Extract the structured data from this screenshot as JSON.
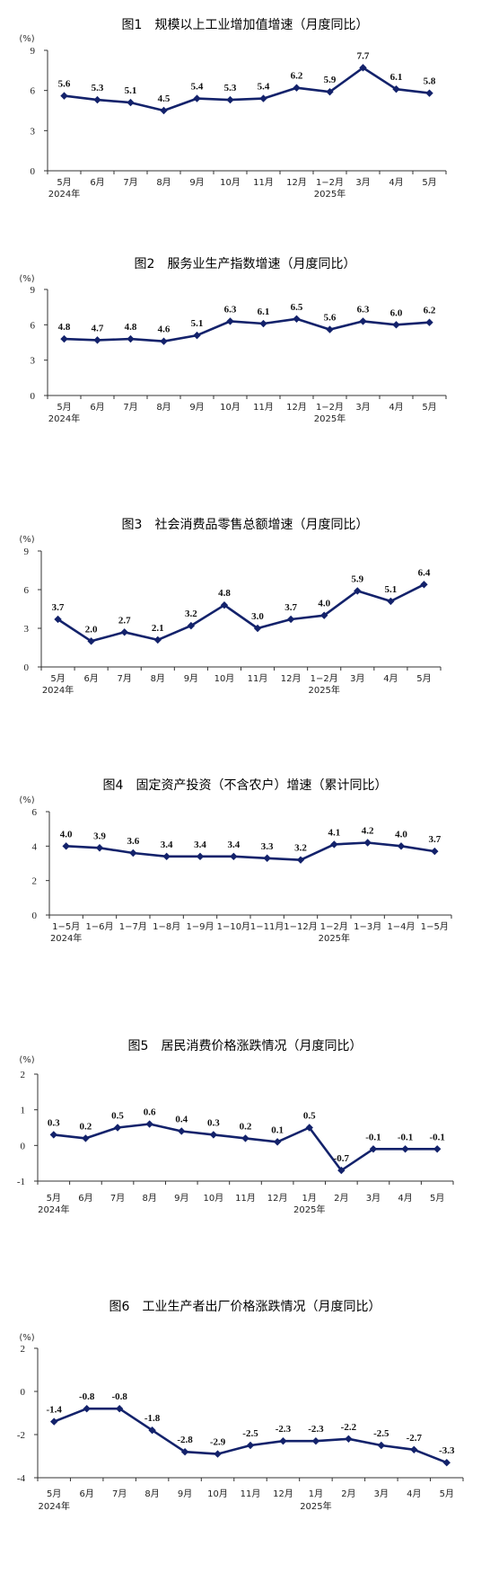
{
  "colors": {
    "series": "#13226b",
    "axis": "#333333"
  },
  "chart_data": [
    {
      "type": "line",
      "title": "图1　规模以上工业增加值增速（月度同比）",
      "unit": "(%)",
      "categories": [
        "5月",
        "6月",
        "7月",
        "8月",
        "9月",
        "10月",
        "11月",
        "12月",
        "1−2月",
        "3月",
        "4月",
        "5月"
      ],
      "year_labels": [
        {
          "index": 0,
          "text": "2024年"
        },
        {
          "index": 8,
          "text": "2025年"
        }
      ],
      "values": [
        5.6,
        5.3,
        5.1,
        4.5,
        5.4,
        5.3,
        5.4,
        6.2,
        5.9,
        7.7,
        6.1,
        5.8
      ],
      "data_labels": [
        "5.6",
        "5.3",
        "5.1",
        "4.5",
        "5.4",
        "5.3",
        "5.4",
        "6.2",
        "5.9",
        "7.7",
        "6.1",
        "5.8"
      ],
      "ylim": [
        0,
        9
      ],
      "yticks": [
        0,
        3,
        6,
        9
      ],
      "grid": false
    },
    {
      "type": "line",
      "title": "图2　服务业生产指数增速（月度同比）",
      "unit": "(%)",
      "categories": [
        "5月",
        "6月",
        "7月",
        "8月",
        "9月",
        "10月",
        "11月",
        "12月",
        "1−2月",
        "3月",
        "4月",
        "5月"
      ],
      "year_labels": [
        {
          "index": 0,
          "text": "2024年"
        },
        {
          "index": 8,
          "text": "2025年"
        }
      ],
      "values": [
        4.8,
        4.7,
        4.8,
        4.6,
        5.1,
        6.3,
        6.1,
        6.5,
        5.6,
        6.3,
        6.0,
        6.2
      ],
      "data_labels": [
        "4.8",
        "4.7",
        "4.8",
        "4.6",
        "5.1",
        "6.3",
        "6.1",
        "6.5",
        "5.6",
        "6.3",
        "6.0",
        "6.2"
      ],
      "ylim": [
        0,
        9
      ],
      "yticks": [
        0,
        3,
        6,
        9
      ],
      "grid": false
    },
    {
      "type": "line",
      "title": "图3　社会消费品零售总额增速（月度同比）",
      "unit": "(%)",
      "categories": [
        "5月",
        "6月",
        "7月",
        "8月",
        "9月",
        "10月",
        "11月",
        "12月",
        "1−2月",
        "3月",
        "4月",
        "5月"
      ],
      "year_labels": [
        {
          "index": 0,
          "text": "2024年"
        },
        {
          "index": 8,
          "text": "2025年"
        }
      ],
      "values": [
        3.7,
        2.0,
        2.7,
        2.1,
        3.2,
        4.8,
        3.0,
        3.7,
        4.0,
        5.9,
        5.1,
        6.4
      ],
      "data_labels": [
        "3.7",
        "2.0",
        "2.7",
        "2.1",
        "3.2",
        "4.8",
        "3.0",
        "3.7",
        "4.0",
        "5.9",
        "5.1",
        "6.4"
      ],
      "ylim": [
        0,
        9
      ],
      "yticks": [
        0,
        3,
        6,
        9
      ],
      "grid": false
    },
    {
      "type": "line",
      "title": "图4　固定资产投资（不含农户）增速（累计同比）",
      "unit": "(%)",
      "categories": [
        "1−5月",
        "1−6月",
        "1−7月",
        "1−8月",
        "1−9月",
        "1−10月",
        "1−11月",
        "1−12月",
        "1−2月",
        "1−3月",
        "1−4月",
        "1−5月"
      ],
      "year_labels": [
        {
          "index": 0,
          "text": "2024年"
        },
        {
          "index": 8,
          "text": "2025年"
        }
      ],
      "values": [
        4.0,
        3.9,
        3.6,
        3.4,
        3.4,
        3.4,
        3.3,
        3.2,
        4.1,
        4.2,
        4.0,
        3.7
      ],
      "data_labels": [
        "4.0",
        "3.9",
        "3.6",
        "3.4",
        "3.4",
        "3.4",
        "3.3",
        "3.2",
        "4.1",
        "4.2",
        "4.0",
        "3.7"
      ],
      "ylim": [
        0,
        6
      ],
      "yticks": [
        0,
        2,
        4,
        6
      ],
      "grid": false
    },
    {
      "type": "line",
      "title": "图5　居民消费价格涨跌情况（月度同比）",
      "unit": "(%)",
      "categories": [
        "5月",
        "6月",
        "7月",
        "8月",
        "9月",
        "10月",
        "11月",
        "12月",
        "1月",
        "2月",
        "3月",
        "4月",
        "5月"
      ],
      "year_labels": [
        {
          "index": 0,
          "text": "2024年"
        },
        {
          "index": 8,
          "text": "2025年"
        }
      ],
      "values": [
        0.3,
        0.2,
        0.5,
        0.6,
        0.4,
        0.3,
        0.2,
        0.1,
        0.5,
        -0.7,
        -0.1,
        -0.1,
        -0.1
      ],
      "data_labels": [
        "0.3",
        "0.2",
        "0.5",
        "0.6",
        "0.4",
        "0.3",
        "0.2",
        "0.1",
        "0.5",
        "-0.7",
        "-0.1",
        "-0.1",
        "-0.1"
      ],
      "ylim": [
        -1,
        2
      ],
      "yticks": [
        -1,
        0,
        1,
        2
      ],
      "grid": false
    },
    {
      "type": "line",
      "title": "图6　工业生产者出厂价格涨跌情况（月度同比）",
      "unit": "(%)",
      "categories": [
        "5月",
        "6月",
        "7月",
        "8月",
        "9月",
        "10月",
        "11月",
        "12月",
        "1月",
        "2月",
        "3月",
        "4月",
        "5月"
      ],
      "year_labels": [
        {
          "index": 0,
          "text": "2024年"
        },
        {
          "index": 8,
          "text": "2025年"
        }
      ],
      "values": [
        -1.4,
        -0.8,
        -0.8,
        -1.8,
        -2.8,
        -2.9,
        -2.5,
        -2.3,
        -2.3,
        -2.2,
        -2.5,
        -2.7,
        -3.3
      ],
      "data_labels": [
        "-1.4",
        "-0.8",
        "-0.8",
        "-1.8",
        "-2.8",
        "-2.9",
        "-2.5",
        "-2.3",
        "-2.3",
        "-2.2",
        "-2.5",
        "-2.7",
        "-3.3"
      ],
      "ylim": [
        -4,
        2
      ],
      "yticks": [
        -4,
        -2,
        0,
        2
      ],
      "grid": false
    }
  ]
}
